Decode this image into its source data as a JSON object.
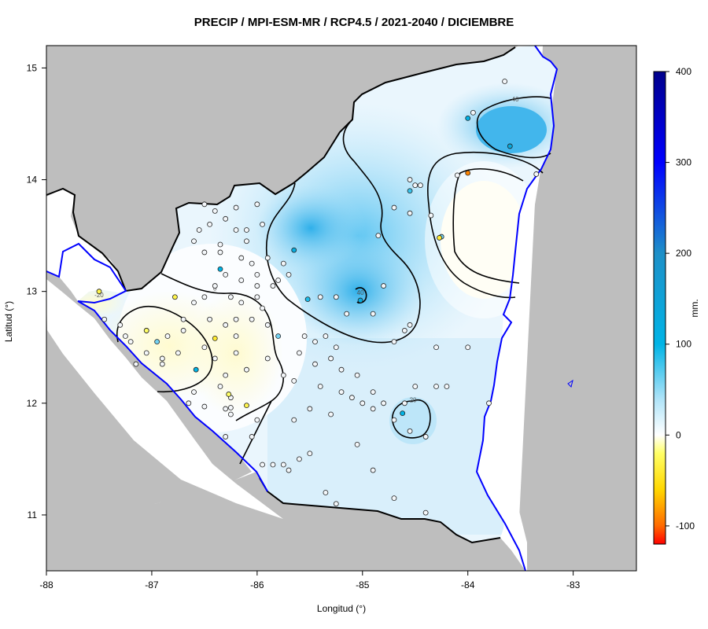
{
  "title": "PRECIP / MPI-ESM-MR / RCP4.5 / 2021-2040 / DICIEMBRE",
  "xlabel": "Longitud (°)",
  "ylabel": "Latitud (°)",
  "colorbar_unit": "mm.",
  "colors": {
    "land_outside": "#bebebe",
    "coast_line": "#0000ff",
    "border_line": "#000000",
    "contour_line": "#000000"
  },
  "colorbar": {
    "ticks": [
      "400",
      "300",
      "200",
      "100",
      "0",
      "-100"
    ],
    "tick_values": [
      400,
      300,
      200,
      100,
      0,
      -100
    ],
    "range": [
      -120,
      400
    ],
    "colors": [
      {
        "v": -120,
        "c": "#ff0000"
      },
      {
        "v": -100,
        "c": "#ff6a00"
      },
      {
        "v": -60,
        "c": "#ffd700"
      },
      {
        "v": -20,
        "c": "#ffff66"
      },
      {
        "v": 0,
        "c": "#ffffff"
      },
      {
        "v": 40,
        "c": "#aee3f8"
      },
      {
        "v": 100,
        "c": "#00b4e6"
      },
      {
        "v": 200,
        "c": "#1e90c8"
      },
      {
        "v": 300,
        "c": "#0000ff"
      },
      {
        "v": 400,
        "c": "#00008b"
      }
    ]
  },
  "chart_data": {
    "type": "map",
    "xlim": [
      -88,
      -82.4
    ],
    "ylim": [
      10.5,
      15.2
    ],
    "x_ticks": [
      -88,
      -87,
      -86,
      -85,
      -84,
      -83
    ],
    "x_tick_labels": [
      "-88",
      "-87",
      "-86",
      "-85",
      "-84",
      "-83"
    ],
    "y_ticks": [
      11,
      12,
      13,
      14,
      15
    ],
    "y_tick_labels": [
      "11",
      "12",
      "13",
      "14",
      "15"
    ],
    "contour_labels": [
      {
        "text": "40",
        "lon": -83.55,
        "lat": 14.7
      },
      {
        "text": "40",
        "lon": -85.02,
        "lat": 12.97
      },
      {
        "text": "20",
        "lon": -84.52,
        "lat": 12.01
      },
      {
        "text": "0",
        "lon": -86.4,
        "lat": 13.01
      },
      {
        "text": "-20",
        "lon": -87.5,
        "lat": 12.95
      }
    ],
    "stations": [
      {
        "lon": -84.0,
        "lat": 14.06,
        "v": -90
      },
      {
        "lon": -83.6,
        "lat": 14.3,
        "v": 130
      },
      {
        "lon": -84.0,
        "lat": 14.55,
        "v": 110
      },
      {
        "lon": -85.65,
        "lat": 13.37,
        "v": 120
      },
      {
        "lon": -85.02,
        "lat": 12.92,
        "v": 120
      },
      {
        "lon": -84.62,
        "lat": 11.91,
        "v": 100
      },
      {
        "lon": -86.35,
        "lat": 13.2,
        "v": 100
      },
      {
        "lon": -86.58,
        "lat": 12.3,
        "v": 100
      },
      {
        "lon": -85.52,
        "lat": 12.93,
        "v": 90
      },
      {
        "lon": -84.55,
        "lat": 13.9,
        "v": 80
      },
      {
        "lon": -84.25,
        "lat": 13.49,
        "v": 60
      },
      {
        "lon": -85.8,
        "lat": 12.6,
        "v": 60
      },
      {
        "lon": -86.95,
        "lat": 12.55,
        "v": 60
      },
      {
        "lon": -87.5,
        "lat": 13.0,
        "v": -30
      },
      {
        "lon": -86.4,
        "lat": 12.58,
        "v": -40
      },
      {
        "lon": -86.1,
        "lat": 11.98,
        "v": -30
      },
      {
        "lon": -86.78,
        "lat": 12.95,
        "v": -30
      },
      {
        "lon": -84.27,
        "lat": 13.48,
        "v": -40
      },
      {
        "lon": -87.05,
        "lat": 12.65,
        "v": -20
      },
      {
        "lon": -86.27,
        "lat": 12.08,
        "v": -20
      }
    ]
  }
}
